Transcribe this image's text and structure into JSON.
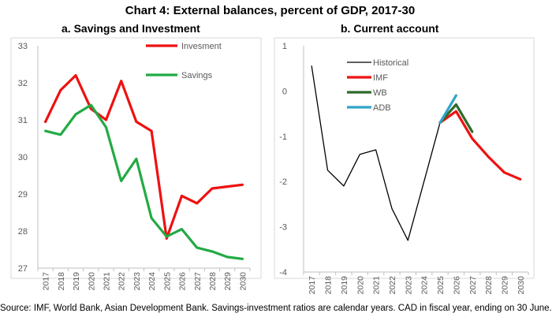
{
  "title": "Chart 4: External balances, percent of GDP, 2017-30",
  "source": "Source: IMF, World Bank, Asian Development Bank. Savings-investment ratios are calendar years. CAD in fiscal year, ending on 30 June.",
  "chart_data": [
    {
      "type": "line",
      "title": "a.   Savings and Investment",
      "xlabel": "",
      "ylabel": "",
      "categories": [
        "2017",
        "2018",
        "2019",
        "2020",
        "2021",
        "2022",
        "2023",
        "2024",
        "2025",
        "2026",
        "2027",
        "2028",
        "2029",
        "2030"
      ],
      "ylim": [
        27,
        33
      ],
      "yticks": [
        27,
        28,
        29,
        30,
        31,
        32,
        33
      ],
      "grid": false,
      "legend": "top-right",
      "series": [
        {
          "name": "Invesment",
          "color": "#ee1111",
          "values": [
            30.95,
            31.8,
            32.2,
            31.3,
            31.0,
            32.05,
            30.95,
            30.7,
            27.8,
            28.95,
            28.75,
            29.15,
            29.2,
            29.25
          ]
        },
        {
          "name": "Savings",
          "color": "#22aa44",
          "values": [
            30.7,
            30.6,
            31.15,
            31.4,
            30.8,
            29.35,
            29.95,
            28.35,
            27.85,
            28.05,
            27.55,
            27.45,
            27.3,
            27.25
          ]
        }
      ]
    },
    {
      "type": "line",
      "title": "b.   Current account",
      "xlabel": "",
      "ylabel": "",
      "categories": [
        "2017",
        "2018",
        "2019",
        "2020",
        "2021",
        "2022",
        "2023",
        "2024",
        "2025",
        "2026",
        "2027",
        "2028",
        "2029",
        "2030"
      ],
      "ylim": [
        -4,
        1
      ],
      "yticks": [
        -4,
        -3,
        -2,
        -1,
        0,
        1
      ],
      "grid": false,
      "legend": "top-left",
      "series": [
        {
          "name": "Historical",
          "color": "#000000",
          "values": [
            0.55,
            -1.75,
            -2.1,
            -1.4,
            -1.3,
            -2.6,
            -3.3,
            -2.0,
            -0.7,
            null,
            null,
            null,
            null,
            null
          ]
        },
        {
          "name": "IMF",
          "color": "#ee1111",
          "values": [
            null,
            null,
            null,
            null,
            null,
            null,
            null,
            null,
            -0.7,
            -0.45,
            -1.05,
            -1.45,
            -1.8,
            -1.95
          ]
        },
        {
          "name": "WB",
          "color": "#2e6b2a",
          "values": [
            null,
            null,
            null,
            null,
            null,
            null,
            null,
            null,
            -0.7,
            -0.3,
            -0.9,
            null,
            null,
            null
          ]
        },
        {
          "name": "ADB",
          "color": "#2ea5c8",
          "values": [
            null,
            null,
            null,
            null,
            null,
            null,
            null,
            null,
            -0.7,
            -0.1,
            null,
            null,
            null,
            null
          ]
        }
      ]
    }
  ]
}
